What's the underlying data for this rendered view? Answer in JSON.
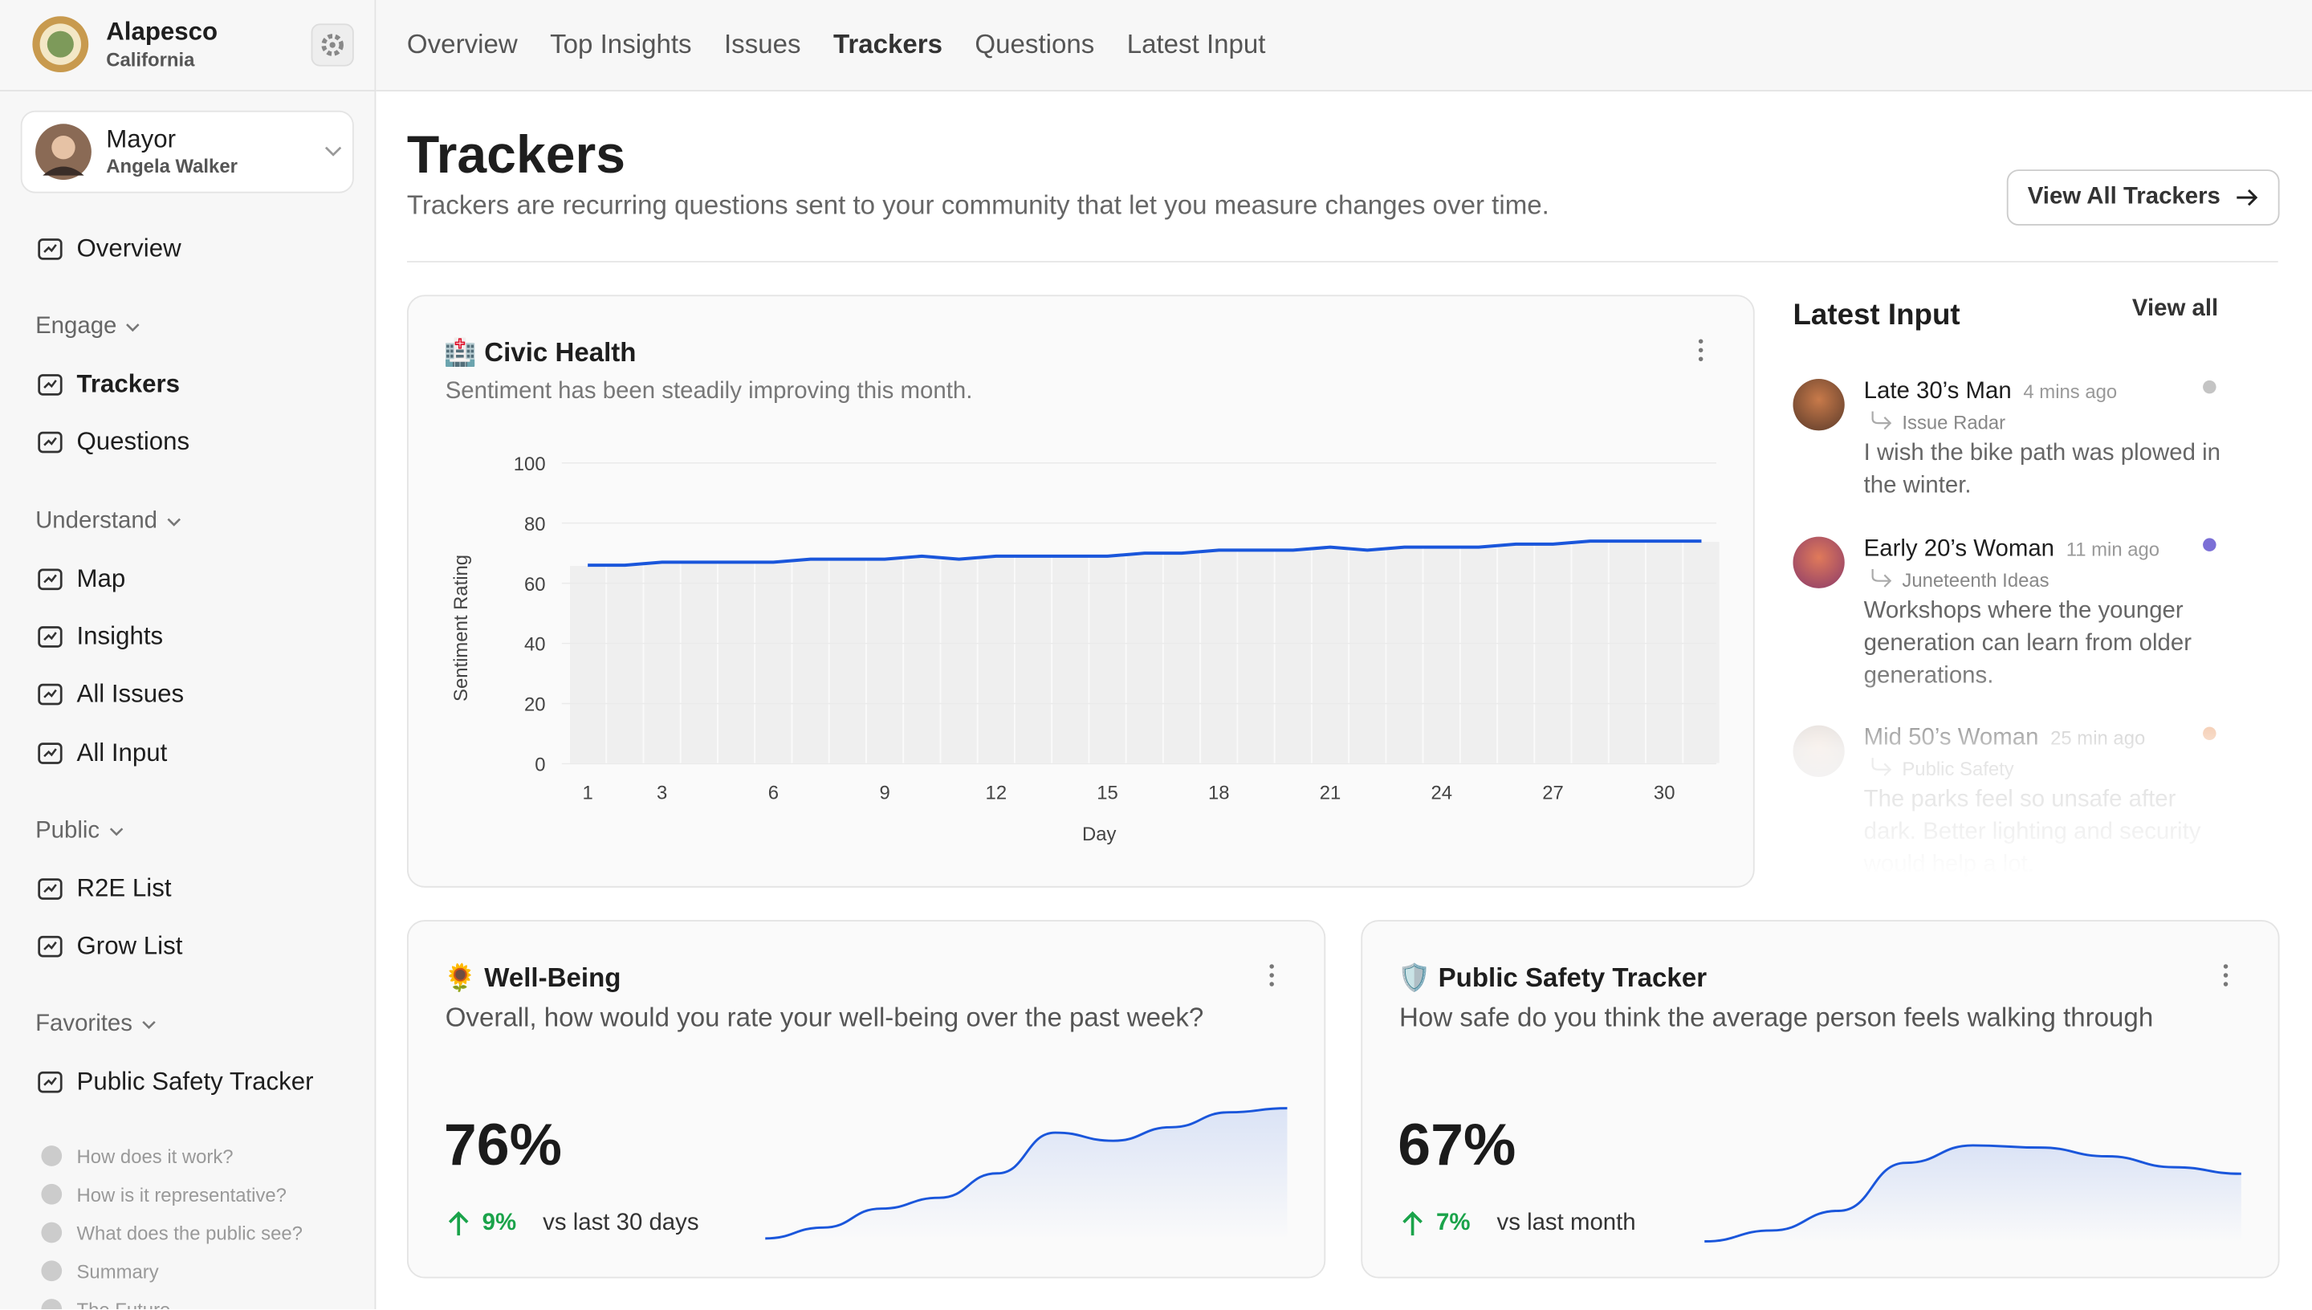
{
  "org": {
    "name": "Alapesco",
    "state": "California"
  },
  "nav": [
    "Overview",
    "Top Insights",
    "Issues",
    "Trackers",
    "Questions",
    "Latest Input"
  ],
  "user": {
    "role": "Mayor",
    "name": "Angela Walker"
  },
  "sidebar": {
    "top": "Overview",
    "sections": [
      {
        "title": "Engage",
        "items": [
          "Trackers",
          "Questions"
        ]
      },
      {
        "title": "Understand",
        "items": [
          "Map",
          "Insights",
          "All Issues",
          "All Input"
        ]
      },
      {
        "title": "Public",
        "items": [
          "R2E List",
          "Grow List"
        ]
      },
      {
        "title": "Favorites",
        "items": [
          "Public Safety Tracker"
        ]
      }
    ],
    "help": [
      "How does it work?",
      "How is it representative?",
      "What does the public see?",
      "Summary",
      "The Future"
    ]
  },
  "page": {
    "title": "Trackers",
    "subtitle": "Trackers are recurring questions sent to your community that let you measure changes over time.",
    "button": "View All Trackers"
  },
  "latest": {
    "title": "Latest Input",
    "view_all": "View all",
    "items": [
      {
        "author": "Late 30’s Man",
        "time": "4 mins ago",
        "source": "Issue Radar",
        "text": "I wish the bike path was plowed in the winter.",
        "dot": "#c4c4c4"
      },
      {
        "author": "Early 20’s Woman",
        "time": "11 min ago",
        "source": "Juneteenth Ideas",
        "text": "Workshops where the younger generation can learn from older generations.",
        "dot": "#7b6fd6"
      },
      {
        "author": "Mid 50’s Woman",
        "time": "25 min ago",
        "source": "Public Safety",
        "text": "The parks feel so unsafe after dark. Better lighting and security would help a lot.",
        "dot": "#e8935a"
      }
    ]
  },
  "cards": [
    {
      "icon": "🌻",
      "title": "Well-Being",
      "question": "Overall, how would you rate your well-being over the past week?",
      "value": "76%",
      "change": "9%",
      "compare": "vs last 30 days"
    },
    {
      "icon": "🛡️",
      "title": "Public Safety Tracker",
      "question": "How safe do you think the average person feels walking through",
      "value": "67%",
      "change": "7%",
      "compare": "vs last month"
    }
  ],
  "chart_data": [
    {
      "type": "line",
      "icon": "🏥",
      "title": "Civic Health",
      "subtitle": "Sentiment has been steadily improving this month.",
      "ylabel": "Sentiment Rating",
      "xlabel": "Day",
      "color": "#1a56db",
      "x": [
        1,
        2,
        3,
        4,
        5,
        6,
        7,
        8,
        9,
        10,
        11,
        12,
        13,
        14,
        15,
        16,
        17,
        18,
        19,
        20,
        21,
        22,
        23,
        24,
        25,
        26,
        27,
        28,
        29,
        30,
        31
      ],
      "values": [
        66,
        66,
        67,
        67,
        67,
        67,
        68,
        68,
        68,
        69,
        68,
        69,
        69,
        69,
        69,
        70,
        70,
        71,
        71,
        71,
        72,
        71,
        72,
        72,
        72,
        73,
        73,
        74,
        74,
        74,
        74
      ],
      "xlim": [
        0.3,
        31.4
      ],
      "ylim": [
        0,
        100
      ],
      "xticks": [
        1,
        3,
        6,
        9,
        12,
        15,
        18,
        21,
        24,
        27,
        30
      ],
      "yticks": [
        0,
        20,
        40,
        60,
        80,
        100
      ],
      "grid": true
    },
    {
      "type": "area",
      "color": "#1a56db",
      "values": [
        0,
        8,
        22,
        30,
        48,
        78,
        72,
        82,
        93,
        96
      ],
      "ylim": [
        0,
        100
      ]
    },
    {
      "type": "area",
      "color": "#1a56db",
      "values": [
        0,
        10,
        28,
        72,
        88,
        86,
        78,
        68,
        62
      ],
      "ylim": [
        0,
        100
      ]
    }
  ]
}
